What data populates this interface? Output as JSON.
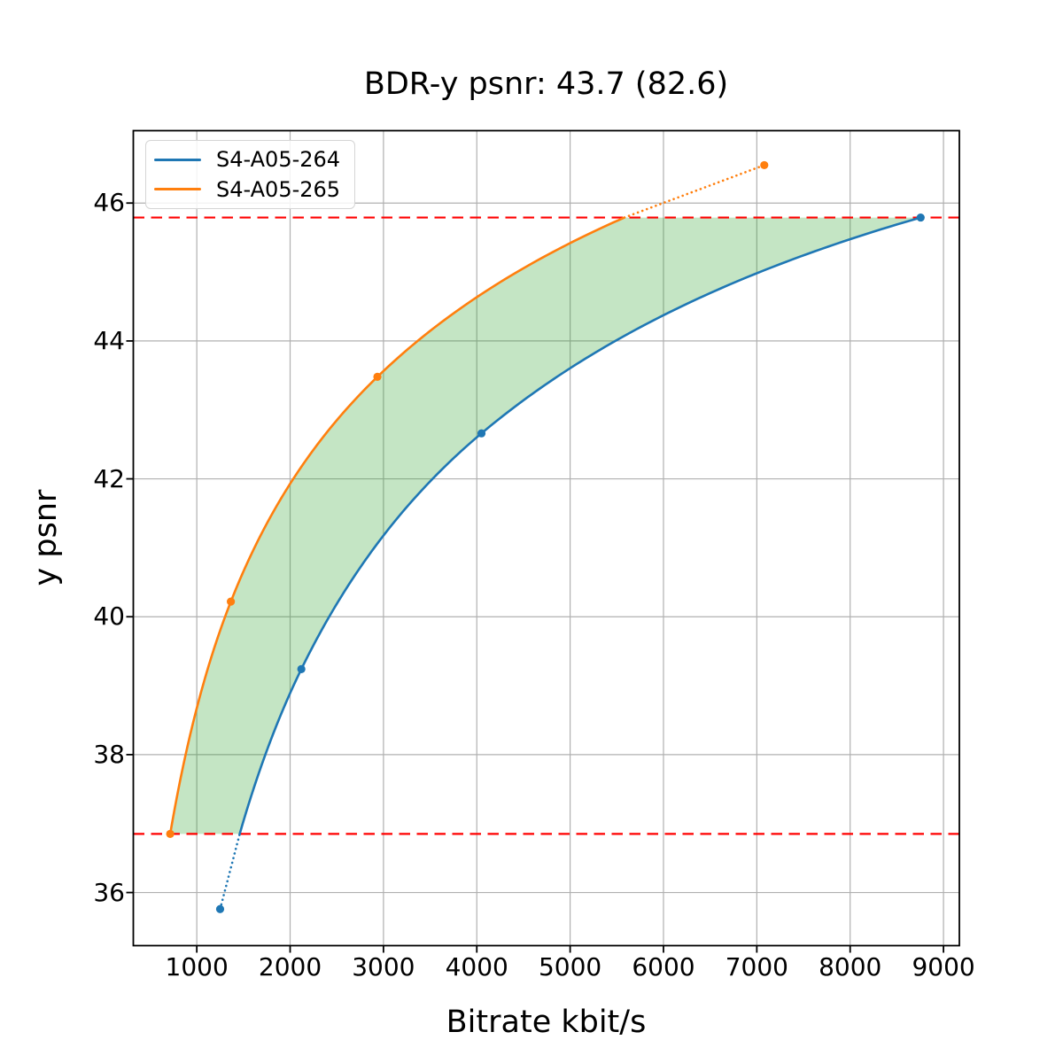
{
  "title": "BDR-y psnr: 43.7 (82.6)",
  "chart_data": {
    "type": "line",
    "title": "BDR-y psnr: 43.7 (82.6)",
    "xlabel": "Bitrate kbit/s",
    "ylabel": "y psnr",
    "xlim": [
      320,
      9170
    ],
    "ylim": [
      35.23,
      47.05
    ],
    "xticks": [
      1000,
      2000,
      3000,
      4000,
      5000,
      6000,
      7000,
      8000,
      9000
    ],
    "yticks": [
      36,
      38,
      40,
      42,
      44,
      46
    ],
    "grid": true,
    "grid_color": "#b0b0b0",
    "background_color": "#ffffff",
    "legend_position": "upper left",
    "fill_between": {
      "color": "#2ca02c",
      "alpha": 0.28
    },
    "hlines": [
      {
        "y": 45.79,
        "color": "#ff0000",
        "style": "dashed"
      },
      {
        "y": 36.85,
        "color": "#ff0000",
        "style": "dashed"
      }
    ],
    "series": [
      {
        "name": "S4-A05-264",
        "color": "#1f77b4",
        "points": [
          [
            1250,
            35.76
          ],
          [
            2120,
            39.24
          ],
          [
            4050,
            42.66
          ],
          [
            8755,
            45.79
          ]
        ]
      },
      {
        "name": "S4-A05-265",
        "color": "#ff7f0e",
        "points": [
          [
            715,
            36.85
          ],
          [
            1365,
            40.22
          ],
          [
            2935,
            43.48
          ],
          [
            7080,
            46.55
          ]
        ]
      }
    ]
  }
}
